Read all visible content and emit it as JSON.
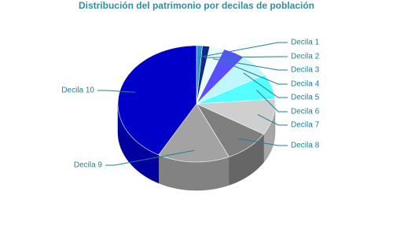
{
  "chart_data": {
    "type": "pie",
    "title": "Distribución del patrimonio por decilas de población",
    "categories": [
      "Decila 1",
      "Decila 2",
      "Decila 3",
      "Decila 4",
      "Decila 5",
      "Decila 6",
      "Decila 7",
      "Decila 8",
      "Decila 9",
      "Decila 10"
    ],
    "values": [
      1.2,
      1.5,
      3,
      4.5,
      6.5,
      7,
      10,
      9.5,
      14.8,
      42
    ],
    "colors": [
      "#2a8fd6",
      "#0a2a8a",
      "#e8fbff",
      "#5a50ff",
      "#bff7ff",
      "#55ffff",
      "#cfcfcf",
      "#7f7f7f",
      "#a3a3a3",
      "#0000c8"
    ]
  }
}
